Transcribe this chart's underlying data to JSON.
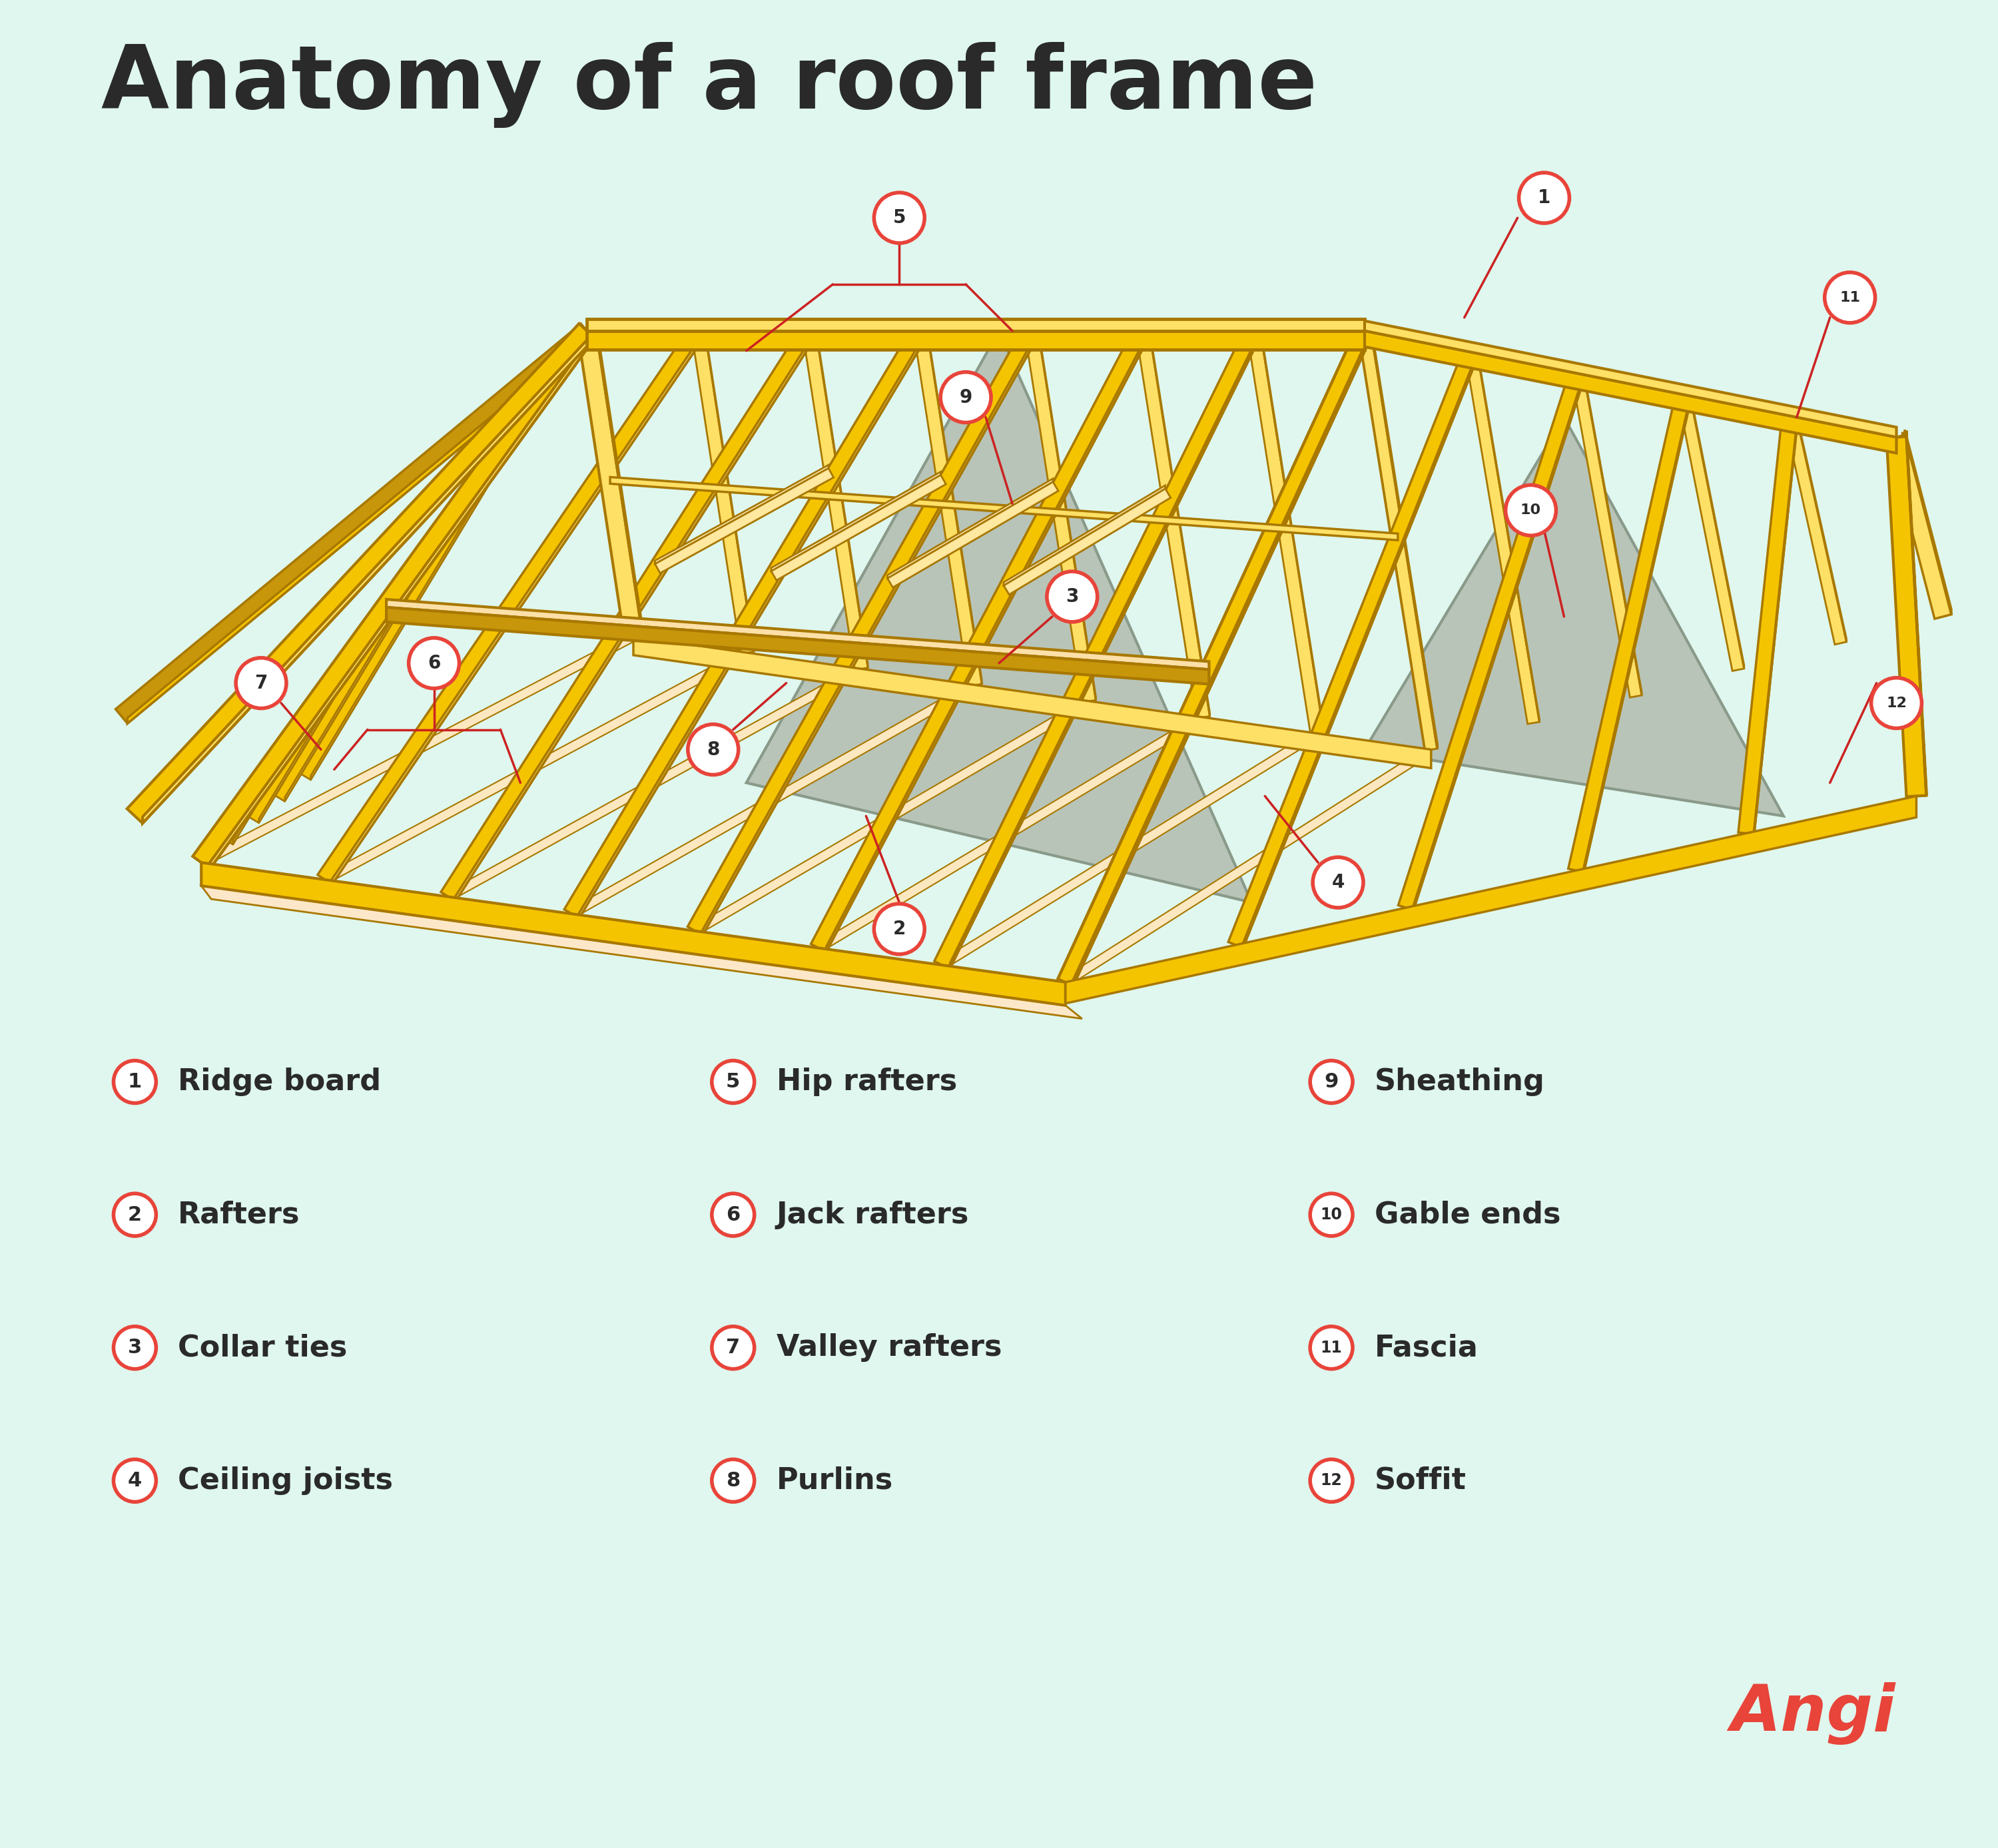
{
  "title": "Anatomy of a roof frame",
  "bg_color": "#dff7ee",
  "title_color": "#2a2a2a",
  "title_fontsize": 95,
  "label_color": "#e8443a",
  "text_color": "#2a2a2a",
  "wood_yellow": "#f5c400",
  "wood_light": "#ffe066",
  "wood_dark": "#c8960a",
  "wood_edge": "#a87800",
  "wood_top": "#ffd633",
  "soffit_color": "#fce8c8",
  "sheathing_fill": "#b8c4b8",
  "sheathing_edge": "#8a9a8a",
  "legend_items": [
    {
      "num": "1",
      "label": "Ridge board"
    },
    {
      "num": "2",
      "label": "Rafters"
    },
    {
      "num": "3",
      "label": "Collar ties"
    },
    {
      "num": "4",
      "label": "Ceiling joists"
    },
    {
      "num": "5",
      "label": "Hip rafters"
    },
    {
      "num": "6",
      "label": "Jack rafters"
    },
    {
      "num": "7",
      "label": "Valley rafters"
    },
    {
      "num": "8",
      "label": "Purlins"
    },
    {
      "num": "9",
      "label": "Sheathing"
    },
    {
      "num": "10",
      "label": "Gable ends"
    },
    {
      "num": "11",
      "label": "Fascia"
    },
    {
      "num": "12",
      "label": "Soffit"
    }
  ],
  "angi_color": "#e8443a",
  "angi_text": "Angi",
  "label_circle_r": 0.38,
  "legend_circle_r": 0.32
}
